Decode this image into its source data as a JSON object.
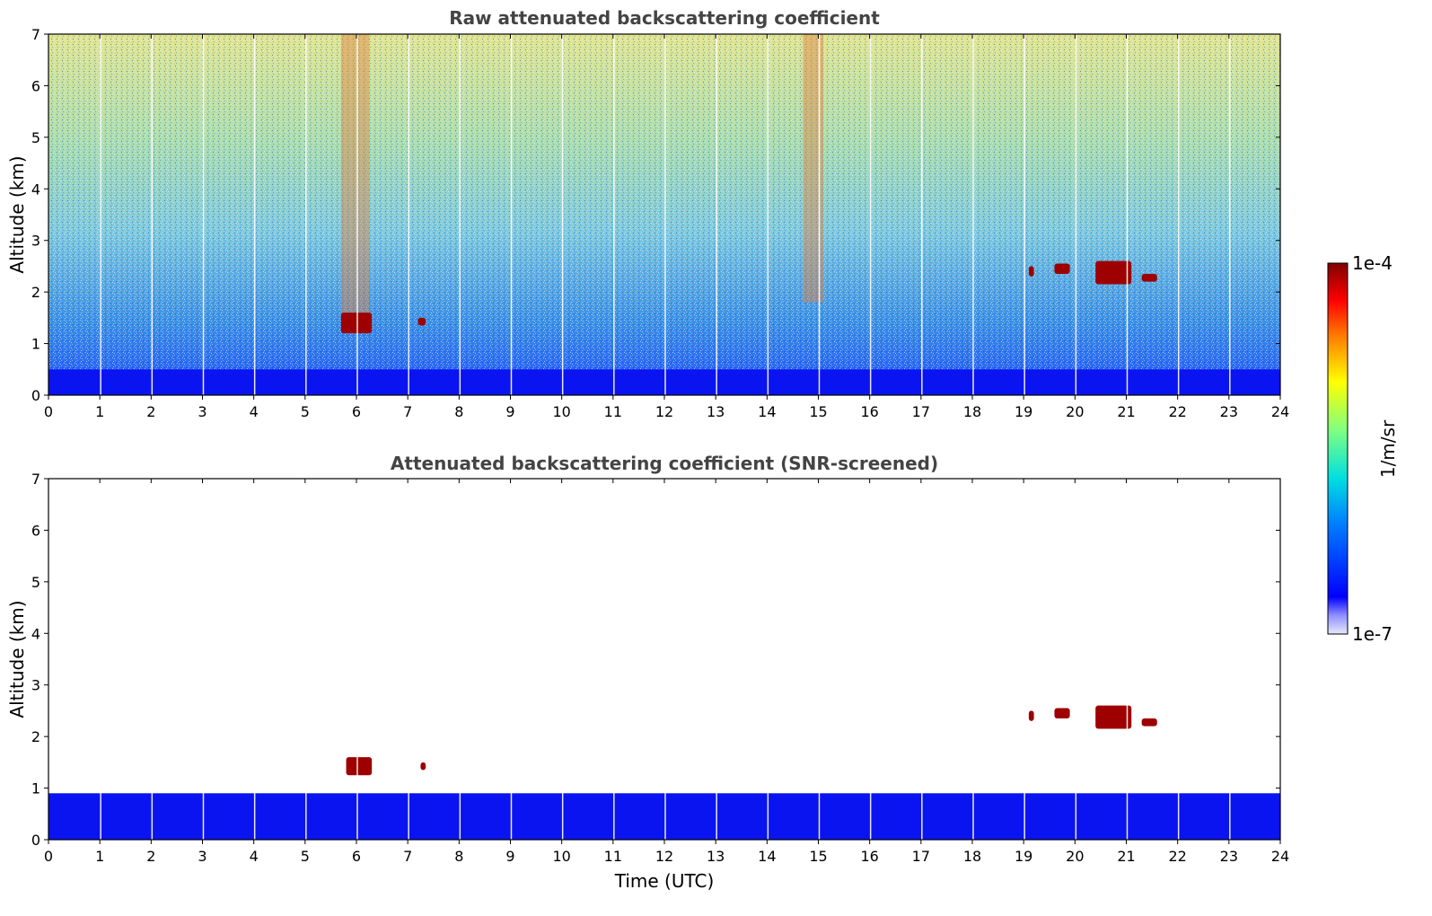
{
  "colors": {
    "ground": "#0a14f0",
    "cloud": "#9e0000",
    "colormap": [
      "#e6e8fa",
      "#0000ff",
      "#0080ff",
      "#00e0e0",
      "#80ff80",
      "#ffff00",
      "#ff8000",
      "#ff0000",
      "#800000"
    ]
  },
  "colorbar": {
    "label": "1/m/sr",
    "max_label": "1e-4",
    "min_label": "1e-7",
    "scale": "log"
  },
  "chart_data": [
    {
      "type": "heatmap",
      "title": "Raw attenuated backscattering coefficient",
      "xlabel": "",
      "ylabel": "Altitude (km)",
      "xlim": [
        0,
        24
      ],
      "ylim": [
        0,
        7
      ],
      "xticks": [
        "0",
        "1",
        "2",
        "3",
        "4",
        "5",
        "6",
        "7",
        "8",
        "9",
        "10",
        "11",
        "12",
        "13",
        "14",
        "15",
        "16",
        "17",
        "18",
        "19",
        "20",
        "21",
        "22",
        "23",
        "24"
      ],
      "yticks": [
        "0",
        "1",
        "2",
        "3",
        "4",
        "5",
        "6",
        "7"
      ],
      "features": [
        {
          "kind": "boundary_layer",
          "x": [
            0,
            24
          ],
          "y": [
            0,
            0.5
          ]
        },
        {
          "kind": "cloud",
          "x": [
            5.7,
            6.3
          ],
          "y": [
            1.2,
            1.6
          ]
        },
        {
          "kind": "cloud",
          "x": [
            7.2,
            7.35
          ],
          "y": [
            1.35,
            1.5
          ]
        },
        {
          "kind": "cloud",
          "x": [
            19.1,
            19.2
          ],
          "y": [
            2.3,
            2.5
          ]
        },
        {
          "kind": "cloud",
          "x": [
            19.6,
            19.9
          ],
          "y": [
            2.35,
            2.55
          ]
        },
        {
          "kind": "cloud",
          "x": [
            20.4,
            21.1
          ],
          "y": [
            2.15,
            2.6
          ]
        },
        {
          "kind": "cloud",
          "x": [
            21.3,
            21.6
          ],
          "y": [
            2.2,
            2.35
          ]
        },
        {
          "kind": "precipitation",
          "x": [
            5.7,
            6.25
          ],
          "y": [
            1.6,
            7
          ]
        },
        {
          "kind": "precipitation",
          "x": [
            14.7,
            15.1
          ],
          "y": [
            1.8,
            7
          ]
        }
      ]
    },
    {
      "type": "heatmap",
      "title": "Attenuated backscattering coefficient (SNR-screened)",
      "xlabel": "Time (UTC)",
      "ylabel": "Altitude (km)",
      "xlim": [
        0,
        24
      ],
      "ylim": [
        0,
        7
      ],
      "xticks": [
        "0",
        "1",
        "2",
        "3",
        "4",
        "5",
        "6",
        "7",
        "8",
        "9",
        "10",
        "11",
        "12",
        "13",
        "14",
        "15",
        "16",
        "17",
        "18",
        "19",
        "20",
        "21",
        "22",
        "23",
        "24"
      ],
      "yticks": [
        "0",
        "1",
        "2",
        "3",
        "4",
        "5",
        "6",
        "7"
      ],
      "features": [
        {
          "kind": "boundary_layer",
          "x": [
            0,
            24
          ],
          "y": [
            0,
            0.9
          ]
        },
        {
          "kind": "cloud",
          "x": [
            5.8,
            6.3
          ],
          "y": [
            1.25,
            1.6
          ]
        },
        {
          "kind": "cloud",
          "x": [
            7.25,
            7.35
          ],
          "y": [
            1.35,
            1.5
          ]
        },
        {
          "kind": "cloud",
          "x": [
            19.1,
            19.2
          ],
          "y": [
            2.3,
            2.5
          ]
        },
        {
          "kind": "cloud",
          "x": [
            19.6,
            19.9
          ],
          "y": [
            2.35,
            2.55
          ]
        },
        {
          "kind": "cloud",
          "x": [
            20.4,
            21.1
          ],
          "y": [
            2.15,
            2.6
          ]
        },
        {
          "kind": "cloud",
          "x": [
            21.3,
            21.6
          ],
          "y": [
            2.2,
            2.35
          ]
        }
      ]
    }
  ]
}
